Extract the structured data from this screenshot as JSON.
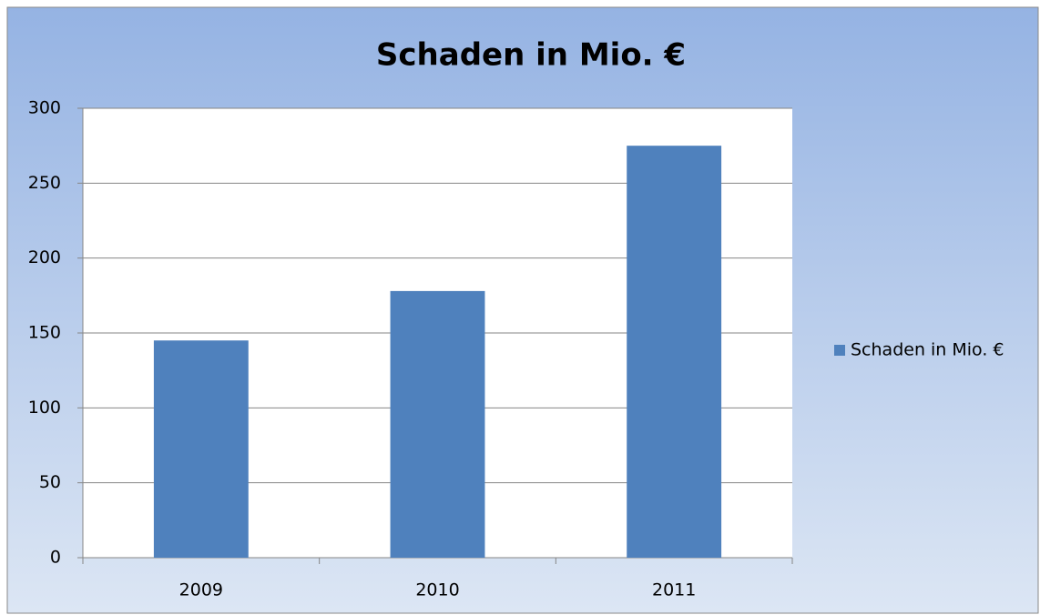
{
  "chart_data": {
    "type": "bar",
    "title": "Schaden in Mio. €",
    "categories": [
      "2009",
      "2010",
      "2011"
    ],
    "series": [
      {
        "name": "Schaden in Mio. €",
        "color": "#4f81bd",
        "values": [
          145,
          178,
          275
        ]
      }
    ],
    "ylim": [
      0,
      300
    ],
    "yticks": [
      0,
      50,
      100,
      150,
      200,
      250,
      300
    ],
    "grid": true,
    "legend": "right"
  }
}
